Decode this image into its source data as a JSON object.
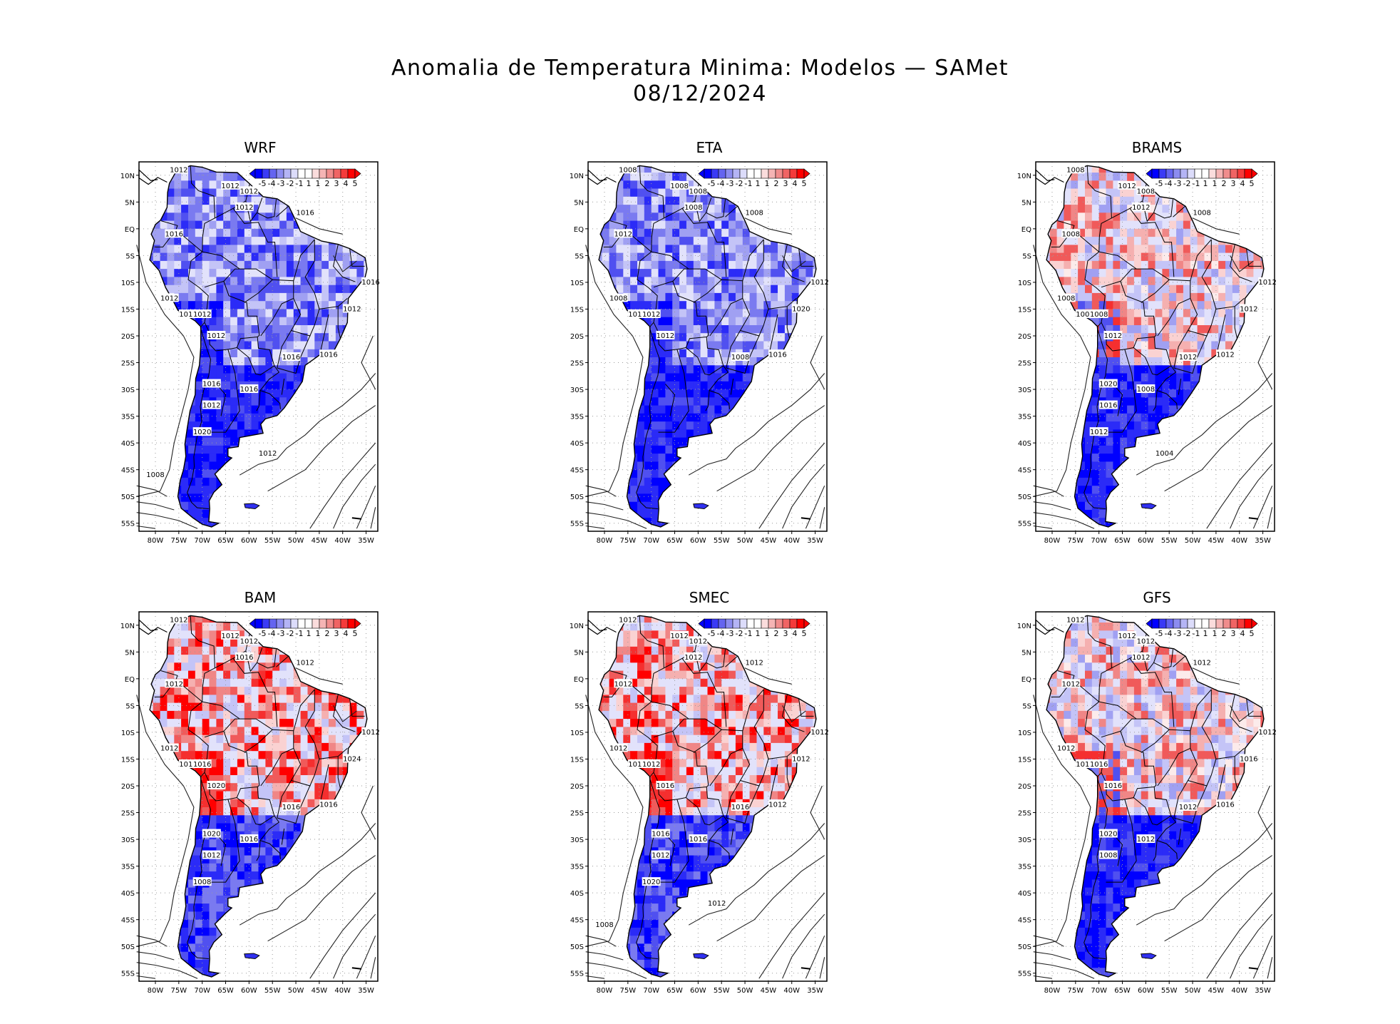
{
  "title": "Anomalia de Temperatura Minima: Modelos — SAMet",
  "date": "08/12/2024",
  "colorbar": {
    "labels": [
      "-5",
      "-4",
      "-3",
      "-2",
      "-1",
      "1",
      "1",
      "2",
      "3",
      "4",
      "5"
    ],
    "colors": [
      "#0000ff",
      "#3a3af5",
      "#6464f0",
      "#8c8cf0",
      "#b4b4f5",
      "#dcdcfa",
      "#ffffff",
      "#ffffff",
      "#fadcdc",
      "#f5b4b4",
      "#f08c8c",
      "#f06464",
      "#f53a3a",
      "#ff0000"
    ]
  },
  "axes": {
    "lat_labels": [
      "10N",
      "5N",
      "EQ",
      "5S",
      "10S",
      "15S",
      "20S",
      "25S",
      "30S",
      "35S",
      "40S",
      "45S",
      "50S",
      "55S"
    ],
    "lon_labels": [
      "80W",
      "75W",
      "70W",
      "65W",
      "60W",
      "55W",
      "50W",
      "45W",
      "40W",
      "35W"
    ]
  },
  "panels": [
    {
      "name": "WRF",
      "scheme": "cold",
      "isobars": [
        "1012",
        "1012",
        "1012",
        "1012",
        "1016",
        "1016",
        "1016",
        "1012",
        "1012",
        "1012",
        "1012",
        "1012",
        "1016",
        "1016",
        "1016",
        "1016",
        "1012",
        "1020",
        "1012",
        "1008"
      ]
    },
    {
      "name": "ETA",
      "scheme": "cold",
      "isobars": [
        "1008",
        "1008",
        "1008",
        "1008",
        "1008",
        "1012",
        "1012",
        "1008",
        "1016",
        "1012",
        "1020",
        "1012",
        "1016",
        "1008"
      ]
    },
    {
      "name": "BRAMS",
      "scheme": "mixed",
      "isobars": [
        "1008",
        "1012",
        "1008",
        "1012",
        "1008",
        "1008",
        "1012",
        "1008",
        "1008",
        "1008",
        "1012",
        "1012",
        "1012",
        "1012",
        "1020",
        "1008",
        "1016",
        "1012",
        "1004"
      ]
    },
    {
      "name": "BAM",
      "scheme": "warm",
      "isobars": [
        "1012",
        "1012",
        "1012",
        "1016",
        "1012",
        "1012",
        "1012",
        "1012",
        "1016",
        "1016",
        "1024",
        "1020",
        "1016",
        "1016",
        "1020",
        "1016",
        "1012",
        "1008"
      ]
    },
    {
      "name": "SMEC",
      "scheme": "warm",
      "isobars": [
        "1012",
        "1012",
        "1012",
        "1012",
        "1012",
        "1012",
        "1012",
        "1012",
        "1012",
        "1012",
        "1012",
        "1016",
        "1012",
        "1016",
        "1016",
        "1016",
        "1012",
        "1020",
        "1012",
        "1008"
      ]
    },
    {
      "name": "GFS",
      "scheme": "mixed",
      "isobars": [
        "1012",
        "1012",
        "1012",
        "1012",
        "1012",
        "1012",
        "1012",
        "1012",
        "1012",
        "1016",
        "1016",
        "1016",
        "1016",
        "1012",
        "1020",
        "1012",
        "1008"
      ]
    }
  ]
}
